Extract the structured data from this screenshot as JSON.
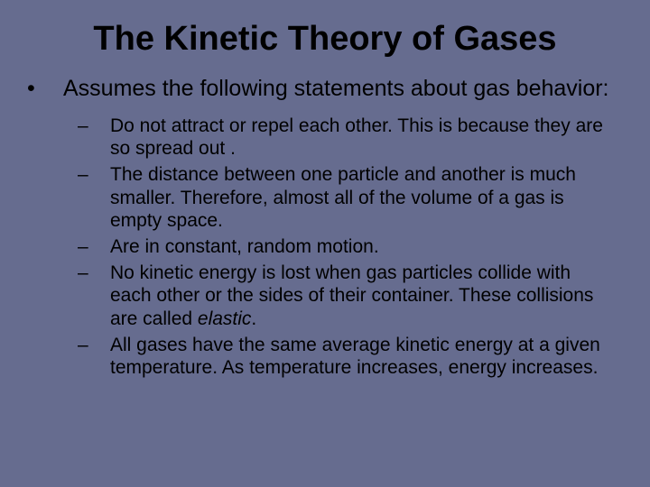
{
  "background_color": "#666c8f",
  "text_color": "#000000",
  "font_family": "Arial",
  "title": {
    "text": "The Kinetic Theory of Gases",
    "fontsize": 38,
    "weight": "bold"
  },
  "intro": {
    "bullet": "•",
    "text": "Assumes the following statements about gas behavior:",
    "fontsize": 25
  },
  "points": [
    {
      "dash": "–",
      "text": "Do not attract or repel each other.  This is because they are so spread out ."
    },
    {
      "dash": "–",
      "text": "The distance between one particle and another is much smaller.  Therefore, almost all of the volume of a gas is empty space."
    },
    {
      "dash": "–",
      "text": "Are in constant, random motion."
    },
    {
      "dash": "–",
      "text_before": "No kinetic energy is lost when gas particles collide with each other or the sides of their container.  These collisions are called ",
      "italic": "elastic",
      "text_after": "."
    },
    {
      "dash": "–",
      "text": "All gases have the same average kinetic energy at a given temperature.  As temperature increases, energy increases."
    }
  ],
  "sub_fontsize": 21
}
